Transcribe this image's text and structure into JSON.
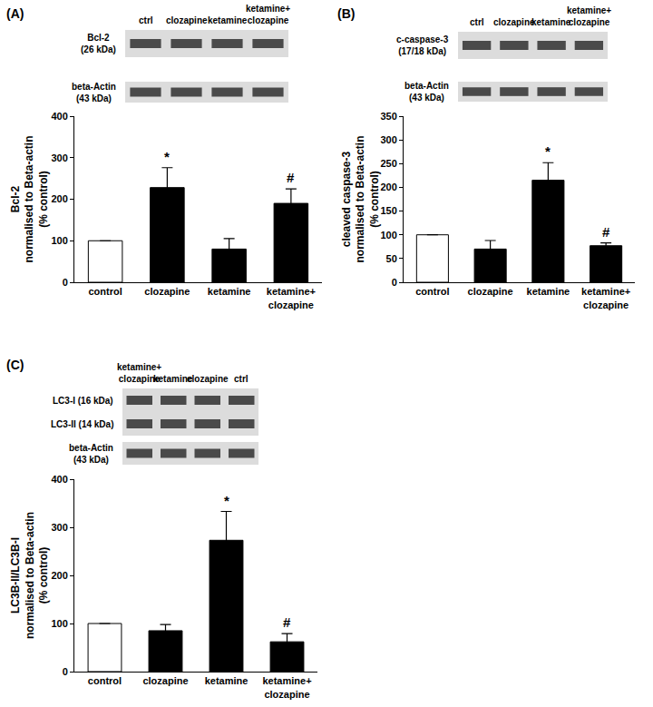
{
  "chart_data": [
    {
      "type": "bar",
      "title": "(A)",
      "ylabel": "Bcl-2\nnormalised to Beta-actin\n(% control)",
      "categories": [
        "control",
        "clozapine",
        "ketamine",
        "ketamine+\nclozapine"
      ],
      "values": [
        100,
        228,
        80,
        190
      ],
      "errors": [
        null,
        48,
        25,
        35
      ],
      "colors": [
        "#ffffff",
        "#000000",
        "#000000",
        "#000000"
      ],
      "ylim": [
        0,
        400
      ],
      "yticks": [
        0,
        100,
        200,
        300,
        400
      ],
      "grid": false,
      "annotations": [
        {
          "category": "clozapine",
          "text": "*"
        },
        {
          "category": "ketamine+\nclozapine",
          "text": "#"
        }
      ],
      "blot": {
        "lanes": [
          "ctrl",
          "clozapine",
          "ketamine",
          "ketamine+\nclozapine"
        ],
        "panels": [
          [
            "Bcl-2\n(26 kDa)"
          ],
          [
            "beta-Actin\n(43 kDa)"
          ]
        ]
      }
    },
    {
      "type": "bar",
      "title": "(B)",
      "ylabel": "cleaved caspase-3\nnormalised to Beta-actin\n(% control)",
      "categories": [
        "control",
        "clozapine",
        "ketamine",
        "ketamine+\nclozapine"
      ],
      "values": [
        100,
        70,
        215,
        77
      ],
      "errors": [
        null,
        18,
        37,
        6
      ],
      "colors": [
        "#ffffff",
        "#000000",
        "#000000",
        "#000000"
      ],
      "ylim": [
        0,
        350
      ],
      "yticks": [
        0,
        50,
        100,
        150,
        200,
        250,
        300,
        350
      ],
      "grid": false,
      "annotations": [
        {
          "category": "ketamine",
          "text": "*"
        },
        {
          "category": "ketamine+\nclozapine",
          "text": "#"
        }
      ],
      "blot": {
        "lanes": [
          "ctrl",
          "clozapine",
          "ketamine",
          "ketamine+\nclozapine"
        ],
        "panels": [
          [
            "c-caspase-3\n(17/18 kDa)"
          ],
          [
            "beta-Actin\n(43 kDa)"
          ]
        ]
      }
    },
    {
      "type": "bar",
      "title": "(C)",
      "ylabel": "LC3B-II/LC3B-I\nnormalised to Beta-actin\n(% control)",
      "categories": [
        "control",
        "clozapine",
        "ketamine",
        "ketamine+\nclozapine"
      ],
      "values": [
        100,
        85,
        273,
        62
      ],
      "errors": [
        null,
        13,
        60,
        17
      ],
      "colors": [
        "#ffffff",
        "#000000",
        "#000000",
        "#000000"
      ],
      "ylim": [
        0,
        400
      ],
      "yticks": [
        0,
        100,
        200,
        300,
        400
      ],
      "grid": false,
      "annotations": [
        {
          "category": "ketamine",
          "text": "*"
        },
        {
          "category": "ketamine+\nclozapine",
          "text": "#"
        }
      ],
      "blot": {
        "lanes": [
          "ketamine+\nclozapine",
          "ketamine",
          "clozapine",
          "ctrl"
        ],
        "panels": [
          [
            "LC3-I (16 kDa)",
            "LC3-II (14 kDa)"
          ],
          [
            "beta-Actin\n(43 kDa)"
          ]
        ]
      }
    }
  ]
}
